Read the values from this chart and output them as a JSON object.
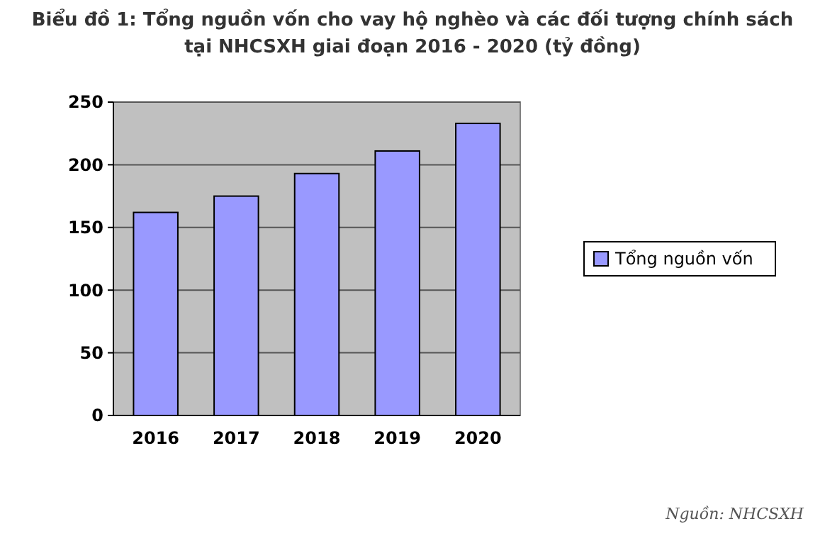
{
  "chart_data": {
    "type": "bar",
    "title": "Biểu đồ 1: Tổng nguồn vốn cho vay hộ nghèo và các đối tượng chính sách tại NHCSXH giai đoạn 2016 - 2020 (tỷ đồng)",
    "categories": [
      "2016",
      "2017",
      "2018",
      "2019",
      "2020"
    ],
    "series": [
      {
        "name": "Tổng nguồn vốn",
        "color": "#9999ff",
        "values": [
          162,
          175,
          193,
          211,
          233
        ]
      }
    ],
    "ylim": [
      0,
      250
    ],
    "yticks": [
      0,
      50,
      100,
      150,
      200,
      250
    ],
    "grid": "y",
    "legend": "right",
    "annotations": [
      "Nguồn: NHCSXH"
    ]
  }
}
